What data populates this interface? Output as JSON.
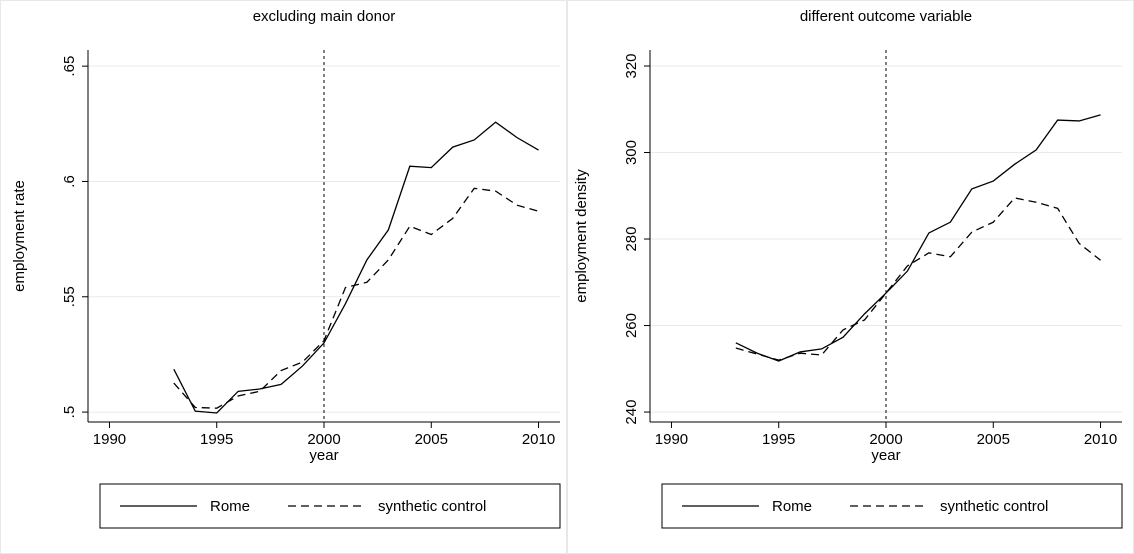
{
  "chart_data": [
    {
      "type": "line",
      "title": "excluding main donor",
      "xlabel": "year",
      "ylabel": "employment rate",
      "x": [
        1993,
        1994,
        1995,
        1996,
        1997,
        1998,
        1999,
        2000,
        2001,
        2002,
        2003,
        2004,
        2005,
        2006,
        2007,
        2008,
        2009,
        2010
      ],
      "series": [
        {
          "name": "Rome",
          "color": "#000000",
          "line_style": "solid",
          "values": [
            0.5186,
            0.5004,
            0.4996,
            0.509,
            0.51,
            0.512,
            0.52,
            0.53,
            0.547,
            0.566,
            0.579,
            0.6066,
            0.606,
            0.6149,
            0.618,
            0.6257,
            0.619,
            0.6136
          ]
        },
        {
          "name": "synthetic control",
          "color": "#000000",
          "line_style": "dashed",
          "values": [
            0.5126,
            0.502,
            0.5017,
            0.507,
            0.509,
            0.518,
            0.5217,
            0.531,
            0.554,
            0.5563,
            0.566,
            0.5806,
            0.577,
            0.584,
            0.597,
            0.5958,
            0.5897,
            0.5871
          ]
        }
      ],
      "xlim": [
        1989,
        2011
      ],
      "xticks": [
        1990,
        1995,
        2000,
        2005,
        2010
      ],
      "ylim": [
        0.4957,
        0.657
      ],
      "yticks": [
        {
          "value": 0.5,
          "label": ".5"
        },
        {
          "value": 0.55,
          "label": ".55"
        },
        {
          "value": 0.6,
          "label": ".6"
        },
        {
          "value": 0.65,
          "label": ".65"
        }
      ],
      "grid": true,
      "vline": 2000
    },
    {
      "type": "line",
      "title": "different outcome variable",
      "xlabel": "year",
      "ylabel": "employment density",
      "x": [
        1993,
        1994,
        1995,
        1996,
        1997,
        1998,
        1999,
        2000,
        2001,
        2002,
        2003,
        2004,
        2005,
        2006,
        2007,
        2008,
        2009,
        2010
      ],
      "series": [
        {
          "name": "Rome",
          "color": "#000000",
          "line_style": "solid",
          "values": [
            256,
            253.6,
            251.8,
            253.9,
            254.6,
            257.3,
            262.7,
            267.5,
            272.6,
            281.4,
            283.9,
            291.6,
            293.4,
            297.3,
            300.6,
            307.5,
            307.3,
            308.7
          ]
        },
        {
          "name": "synthetic control",
          "color": "#000000",
          "line_style": "dashed",
          "values": [
            254.8,
            253.4,
            252,
            253.6,
            253.2,
            259,
            261.3,
            267.5,
            273.8,
            276.8,
            275.9,
            281.6,
            283.9,
            289.5,
            288.5,
            287.1,
            279,
            275.1
          ]
        }
      ],
      "xlim": [
        1989,
        2011
      ],
      "xticks": [
        1990,
        1995,
        2000,
        2005,
        2010
      ],
      "ylim": [
        237.7,
        323.7
      ],
      "yticks": [
        240,
        260,
        280,
        300,
        320
      ],
      "grid": true,
      "vline": 2000
    }
  ]
}
